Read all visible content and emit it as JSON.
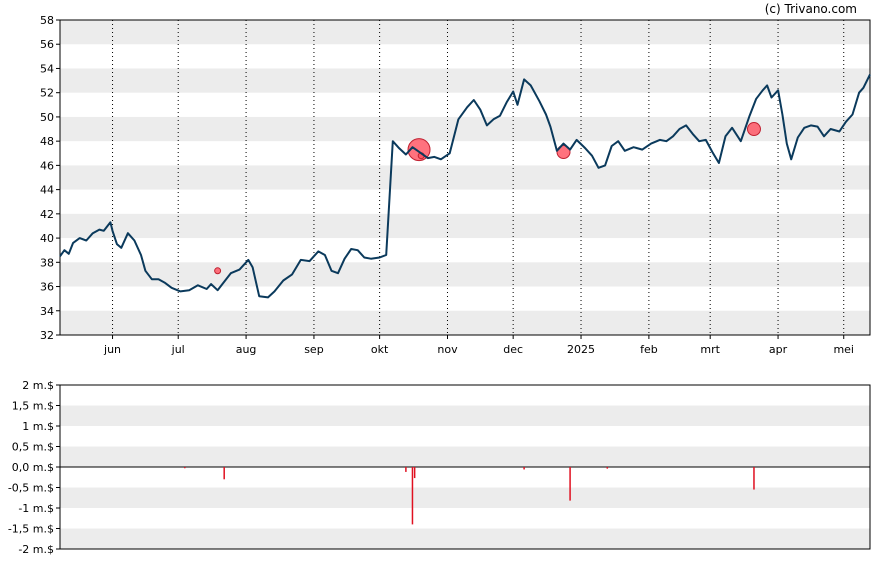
{
  "copyright": "(c) Trivano.com",
  "chart_data": [
    {
      "type": "line",
      "name": "price-chart",
      "ylim": [
        32,
        58
      ],
      "yticks": [
        32,
        34,
        36,
        38,
        40,
        42,
        44,
        46,
        48,
        50,
        52,
        54,
        56,
        58
      ],
      "xlim": [
        "2024-05-08",
        "2025-05-13"
      ],
      "x_ticks": [
        {
          "date": "2024-06-01",
          "label": "jun"
        },
        {
          "date": "2024-07-01",
          "label": "jul"
        },
        {
          "date": "2024-08-01",
          "label": "aug"
        },
        {
          "date": "2024-09-01",
          "label": "sep"
        },
        {
          "date": "2024-10-01",
          "label": "okt"
        },
        {
          "date": "2024-11-01",
          "label": "nov"
        },
        {
          "date": "2024-12-01",
          "label": "dec"
        },
        {
          "date": "2025-01-01",
          "label": "2025"
        },
        {
          "date": "2025-02-01",
          "label": "feb"
        },
        {
          "date": "2025-03-01",
          "label": "mrt"
        },
        {
          "date": "2025-04-01",
          "label": "apr"
        },
        {
          "date": "2025-05-01",
          "label": "mei"
        }
      ],
      "grid": "alternating bands, dotted month lines",
      "line_color": "#0b3a5c",
      "series": [
        {
          "points": [
            [
              "2024-05-08",
              38.5
            ],
            [
              "2024-05-10",
              39.0
            ],
            [
              "2024-05-12",
              38.7
            ],
            [
              "2024-05-14",
              39.6
            ],
            [
              "2024-05-17",
              40.0
            ],
            [
              "2024-05-20",
              39.8
            ],
            [
              "2024-05-23",
              40.4
            ],
            [
              "2024-05-26",
              40.7
            ],
            [
              "2024-05-28",
              40.6
            ],
            [
              "2024-05-31",
              41.3
            ],
            [
              "2024-06-01",
              40.6
            ],
            [
              "2024-06-03",
              39.5
            ],
            [
              "2024-06-05",
              39.2
            ],
            [
              "2024-06-08",
              40.4
            ],
            [
              "2024-06-11",
              39.8
            ],
            [
              "2024-06-14",
              38.6
            ],
            [
              "2024-06-16",
              37.3
            ],
            [
              "2024-06-19",
              36.6
            ],
            [
              "2024-06-22",
              36.6
            ],
            [
              "2024-06-25",
              36.3
            ],
            [
              "2024-06-28",
              35.9
            ],
            [
              "2024-07-02",
              35.6
            ],
            [
              "2024-07-06",
              35.7
            ],
            [
              "2024-07-10",
              36.1
            ],
            [
              "2024-07-14",
              35.8
            ],
            [
              "2024-07-16",
              36.2
            ],
            [
              "2024-07-19",
              35.7
            ],
            [
              "2024-07-22",
              36.4
            ],
            [
              "2024-07-25",
              37.1
            ],
            [
              "2024-07-29",
              37.4
            ],
            [
              "2024-08-02",
              38.2
            ],
            [
              "2024-08-04",
              37.6
            ],
            [
              "2024-08-07",
              35.2
            ],
            [
              "2024-08-11",
              35.1
            ],
            [
              "2024-08-14",
              35.6
            ],
            [
              "2024-08-18",
              36.5
            ],
            [
              "2024-08-22",
              37.0
            ],
            [
              "2024-08-26",
              38.2
            ],
            [
              "2024-08-30",
              38.1
            ],
            [
              "2024-09-03",
              38.9
            ],
            [
              "2024-09-06",
              38.6
            ],
            [
              "2024-09-09",
              37.3
            ],
            [
              "2024-09-12",
              37.1
            ],
            [
              "2024-09-15",
              38.3
            ],
            [
              "2024-09-18",
              39.1
            ],
            [
              "2024-09-21",
              39.0
            ],
            [
              "2024-09-24",
              38.4
            ],
            [
              "2024-09-27",
              38.3
            ],
            [
              "2024-10-01",
              38.4
            ],
            [
              "2024-10-04",
              38.6
            ],
            [
              "2024-10-07",
              48.0
            ],
            [
              "2024-10-10",
              47.4
            ],
            [
              "2024-10-13",
              46.9
            ],
            [
              "2024-10-16",
              47.5
            ],
            [
              "2024-10-20",
              47.0
            ],
            [
              "2024-10-23",
              46.6
            ],
            [
              "2024-10-26",
              46.7
            ],
            [
              "2024-10-29",
              46.5
            ],
            [
              "2024-11-02",
              47.0
            ],
            [
              "2024-11-06",
              49.8
            ],
            [
              "2024-11-10",
              50.8
            ],
            [
              "2024-11-13",
              51.4
            ],
            [
              "2024-11-16",
              50.6
            ],
            [
              "2024-11-19",
              49.3
            ],
            [
              "2024-11-22",
              49.8
            ],
            [
              "2024-11-25",
              50.1
            ],
            [
              "2024-11-28",
              51.2
            ],
            [
              "2024-12-01",
              52.1
            ],
            [
              "2024-12-03",
              51.0
            ],
            [
              "2024-12-06",
              53.1
            ],
            [
              "2024-12-09",
              52.6
            ],
            [
              "2024-12-13",
              51.3
            ],
            [
              "2024-12-16",
              50.2
            ],
            [
              "2024-12-18",
              49.2
            ],
            [
              "2024-12-21",
              47.2
            ],
            [
              "2024-12-24",
              47.8
            ],
            [
              "2024-12-27",
              47.3
            ],
            [
              "2024-12-30",
              48.1
            ],
            [
              "2025-01-03",
              47.4
            ],
            [
              "2025-01-06",
              46.8
            ],
            [
              "2025-01-09",
              45.8
            ],
            [
              "2025-01-12",
              46.0
            ],
            [
              "2025-01-15",
              47.6
            ],
            [
              "2025-01-18",
              48.0
            ],
            [
              "2025-01-21",
              47.2
            ],
            [
              "2025-01-25",
              47.5
            ],
            [
              "2025-01-29",
              47.3
            ],
            [
              "2025-02-02",
              47.8
            ],
            [
              "2025-02-06",
              48.1
            ],
            [
              "2025-02-09",
              48.0
            ],
            [
              "2025-02-12",
              48.4
            ],
            [
              "2025-02-15",
              49.0
            ],
            [
              "2025-02-18",
              49.3
            ],
            [
              "2025-02-21",
              48.6
            ],
            [
              "2025-02-24",
              48.0
            ],
            [
              "2025-02-27",
              48.1
            ],
            [
              "2025-03-02",
              47.1
            ],
            [
              "2025-03-05",
              46.2
            ],
            [
              "2025-03-08",
              48.4
            ],
            [
              "2025-03-11",
              49.1
            ],
            [
              "2025-03-15",
              48.0
            ],
            [
              "2025-03-19",
              50.1
            ],
            [
              "2025-03-22",
              51.5
            ],
            [
              "2025-03-25",
              52.2
            ],
            [
              "2025-03-27",
              52.6
            ],
            [
              "2025-03-29",
              51.6
            ],
            [
              "2025-04-01",
              52.2
            ],
            [
              "2025-04-03",
              50.2
            ],
            [
              "2025-04-05",
              47.8
            ],
            [
              "2025-04-07",
              46.5
            ],
            [
              "2025-04-10",
              48.3
            ],
            [
              "2025-04-13",
              49.1
            ],
            [
              "2025-04-16",
              49.3
            ],
            [
              "2025-04-19",
              49.2
            ],
            [
              "2025-04-22",
              48.4
            ],
            [
              "2025-04-25",
              49.0
            ],
            [
              "2025-04-29",
              48.8
            ],
            [
              "2025-05-02",
              49.6
            ],
            [
              "2025-05-05",
              50.2
            ],
            [
              "2025-05-08",
              52.0
            ],
            [
              "2025-05-10",
              52.4
            ],
            [
              "2025-05-13",
              53.5
            ]
          ]
        }
      ],
      "markers": [
        {
          "date": "2024-07-19",
          "value": 37.3,
          "size": "small"
        },
        {
          "date": "2024-10-19",
          "value": 47.3,
          "size": "large"
        },
        {
          "date": "2024-10-20",
          "value": 46.8,
          "size": "small"
        },
        {
          "date": "2024-12-24",
          "value": 47.1,
          "size": "medium"
        },
        {
          "date": "2025-03-21",
          "value": 49.0,
          "size": "medium"
        }
      ],
      "marker_color": "#ff4f5e"
    },
    {
      "type": "bar",
      "name": "volume-chart",
      "ylim": [
        -2,
        2
      ],
      "yticks": [
        {
          "value": 2,
          "label": "2 m.$"
        },
        {
          "value": 1.5,
          "label": "1,5 m.$"
        },
        {
          "value": 1,
          "label": "1 m.$"
        },
        {
          "value": 0.5,
          "label": "0,5 m.$"
        },
        {
          "value": 0,
          "label": "0,0 m.$"
        },
        {
          "value": -0.5,
          "label": "-0,5 m.$"
        },
        {
          "value": -1,
          "label": "-1 m.$"
        },
        {
          "value": -1.5,
          "label": "-1,5 m.$"
        },
        {
          "value": -2,
          "label": "-2 m.$"
        }
      ],
      "bar_color": "#e01020",
      "bars": [
        {
          "date": "2024-07-22",
          "value": -0.3
        },
        {
          "date": "2024-10-13",
          "value": -0.12
        },
        {
          "date": "2024-10-16",
          "value": -1.4
        },
        {
          "date": "2024-10-17",
          "value": -0.27
        },
        {
          "date": "2024-12-06",
          "value": -0.06
        },
        {
          "date": "2024-12-27",
          "value": -0.82
        },
        {
          "date": "2025-01-13",
          "value": -0.04
        },
        {
          "date": "2025-03-21",
          "value": -0.55
        },
        {
          "date": "2024-07-04",
          "value": -0.03
        }
      ]
    }
  ]
}
